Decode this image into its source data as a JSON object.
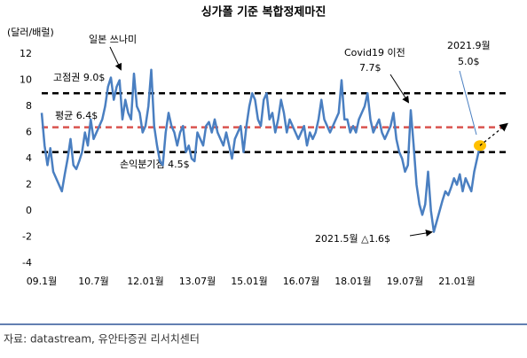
{
  "chart_data": {
    "type": "line",
    "title": "싱가폴 기준 복합정제마진",
    "y_label": "(달러/배럴)",
    "categories": [
      "09.1월",
      null,
      null,
      null,
      null,
      null,
      null,
      null,
      null,
      null,
      null,
      null,
      null,
      null,
      null,
      null,
      null,
      null,
      "10.7월",
      null,
      null,
      null,
      null,
      null,
      null,
      null,
      null,
      null,
      null,
      null,
      null,
      null,
      null,
      null,
      null,
      null,
      "12.01월",
      null,
      null,
      null,
      null,
      null,
      null,
      null,
      null,
      null,
      null,
      null,
      null,
      null,
      null,
      null,
      null,
      null,
      "13.07월",
      null,
      null,
      null,
      null,
      null,
      null,
      null,
      null,
      null,
      null,
      null,
      null,
      null,
      null,
      null,
      null,
      null,
      "15.01월",
      null,
      null,
      null,
      null,
      null,
      null,
      null,
      null,
      null,
      null,
      null,
      null,
      null,
      null,
      null,
      null,
      null,
      "16.07월",
      null,
      null,
      null,
      null,
      null,
      null,
      null,
      null,
      null,
      null,
      null,
      null,
      null,
      null,
      null,
      null,
      null,
      "18.01월",
      null,
      null,
      null,
      null,
      null,
      null,
      null,
      null,
      null,
      null,
      null,
      null,
      null,
      null,
      null,
      null,
      null,
      "19.07월",
      null,
      null,
      null,
      null,
      null,
      null,
      null,
      null,
      null,
      null,
      null,
      null,
      null,
      null,
      null,
      null,
      null,
      "21.01월",
      null,
      null,
      null,
      null,
      null,
      null,
      null,
      null
    ],
    "values": [
      7.5,
      5.0,
      3.5,
      4.8,
      3.0,
      2.5,
      2.0,
      1.5,
      2.8,
      4.0,
      5.5,
      3.5,
      3.2,
      3.8,
      4.5,
      6.0,
      5.0,
      7.0,
      5.5,
      6.0,
      6.5,
      7.0,
      8.0,
      9.5,
      10.2,
      8.5,
      9.5,
      10.0,
      7.0,
      8.5,
      7.5,
      7.0,
      10.5,
      8.0,
      7.5,
      6.0,
      6.5,
      8.0,
      10.8,
      6.5,
      5.0,
      3.8,
      3.5,
      6.0,
      7.5,
      6.5,
      6.0,
      5.0,
      6.0,
      6.5,
      4.5,
      5.0,
      4.0,
      3.8,
      6.0,
      5.5,
      5.0,
      6.5,
      6.8,
      6.0,
      7.0,
      6.0,
      5.5,
      5.0,
      6.0,
      5.0,
      4.0,
      5.5,
      6.0,
      6.5,
      4.5,
      6.5,
      8.0,
      9.0,
      8.5,
      7.0,
      6.5,
      8.5,
      9.0,
      7.0,
      7.5,
      6.0,
      7.0,
      8.5,
      7.5,
      6.0,
      7.0,
      6.5,
      6.0,
      5.5,
      6.0,
      6.5,
      5.0,
      6.0,
      5.5,
      6.0,
      7.0,
      8.5,
      7.0,
      6.5,
      6.0,
      6.5,
      7.0,
      7.5,
      10.0,
      7.0,
      7.0,
      6.0,
      6.5,
      6.0,
      7.0,
      7.5,
      8.0,
      9.0,
      7.0,
      6.0,
      6.5,
      7.0,
      6.0,
      5.5,
      6.0,
      6.5,
      7.5,
      5.5,
      4.5,
      4.0,
      3.0,
      3.5,
      7.7,
      5.0,
      2.0,
      0.5,
      -0.3,
      0.5,
      3.0,
      0.0,
      -1.6,
      -0.8,
      0.0,
      0.8,
      1.5,
      1.2,
      1.8,
      2.5,
      2.0,
      2.8,
      1.5,
      2.5,
      2.0,
      1.5,
      3.0,
      4.0,
      5.0
    ],
    "color": "#4a7fc1",
    "ylim": [
      -4,
      12
    ],
    "yticks": [
      -4,
      -2,
      0,
      2,
      4,
      6,
      8,
      10,
      12
    ],
    "reference_lines": [
      {
        "value": 9.0,
        "label": "고점권 9.0$",
        "color": "#000000"
      },
      {
        "value": 6.4,
        "label": "평균 6.4$",
        "color": "#d9534f"
      },
      {
        "value": 4.5,
        "label": "손익분기점 4.5$",
        "color": "#000000"
      }
    ],
    "annotations": [
      "일본 쓰나미",
      "Covid19 이전",
      "7.7$",
      "2021.9월",
      "5.0$",
      "2021.5월 △1.6$"
    ],
    "source": "자료: datastream, 유안타증권 리서치센터"
  }
}
